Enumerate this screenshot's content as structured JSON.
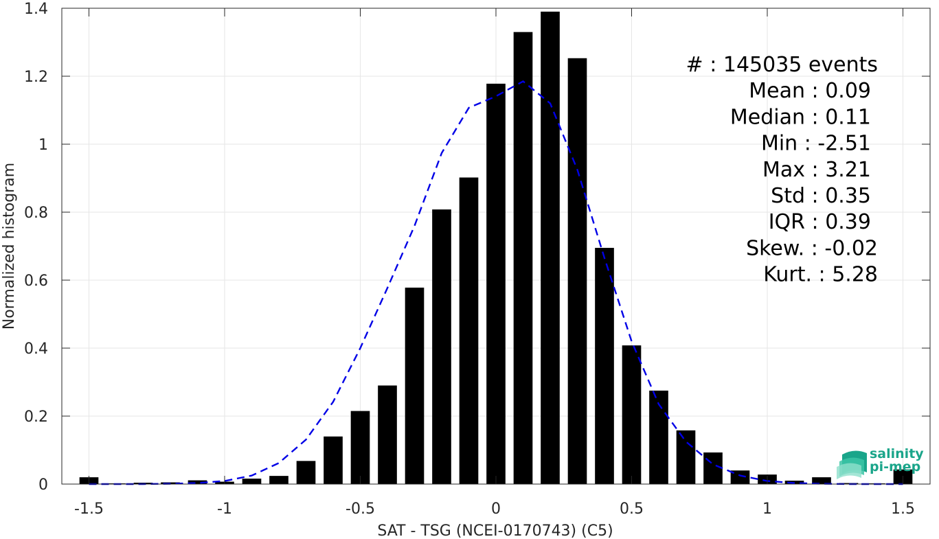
{
  "chart_data": {
    "type": "bar",
    "xlabel": "SAT - TSG (NCEI-0170743) (C5)",
    "ylabel": "Normalized histogram",
    "xlim": [
      -1.6,
      1.6
    ],
    "ylim": [
      0,
      1.4
    ],
    "xticks": [
      -1.5,
      -1,
      -0.5,
      0,
      0.5,
      1,
      1.5
    ],
    "xtick_labels": [
      "-1.5",
      "-1",
      "-0.5",
      "0",
      "0.5",
      "1",
      "1.5"
    ],
    "yticks": [
      0,
      0.2,
      0.4,
      0.6,
      0.8,
      1,
      1.2,
      1.4
    ],
    "ytick_labels": [
      "0",
      "0.2",
      "0.4",
      "0.6",
      "0.8",
      "1",
      "1.2",
      "1.4"
    ],
    "grid": true,
    "bar_width": 0.07,
    "bars": {
      "x": [
        -1.5,
        -1.4,
        -1.3,
        -1.2,
        -1.1,
        -1.0,
        -0.9,
        -0.8,
        -0.7,
        -0.6,
        -0.5,
        -0.4,
        -0.3,
        -0.2,
        -0.1,
        0.0,
        0.1,
        0.2,
        0.3,
        0.4,
        0.5,
        0.6,
        0.7,
        0.8,
        0.9,
        1.0,
        1.1,
        1.2,
        1.3,
        1.4,
        1.5
      ],
      "values": [
        0.02,
        0.002,
        0.004,
        0.005,
        0.011,
        0.007,
        0.016,
        0.024,
        0.068,
        0.14,
        0.215,
        0.29,
        0.578,
        0.808,
        0.902,
        1.178,
        1.33,
        1.39,
        1.253,
        0.695,
        0.408,
        0.275,
        0.158,
        0.093,
        0.04,
        0.028,
        0.01,
        0.02,
        0.003,
        0.002,
        0.043
      ],
      "color": "#000000"
    },
    "fit_curve": {
      "style": "dashed",
      "color": "#0000e6",
      "x": [
        -1.5,
        -1.4,
        -1.3,
        -1.2,
        -1.1,
        -1.0,
        -0.9,
        -0.8,
        -0.7,
        -0.6,
        -0.5,
        -0.4,
        -0.3,
        -0.2,
        -0.1,
        0.0,
        0.1,
        0.2,
        0.3,
        0.4,
        0.5,
        0.6,
        0.7,
        0.8,
        0.9,
        1.0,
        1.1,
        1.2,
        1.3,
        1.4,
        1.5
      ],
      "y": [
        0.0,
        0.0,
        0.0,
        0.001,
        0.003,
        0.009,
        0.025,
        0.062,
        0.131,
        0.242,
        0.4,
        0.577,
        0.76,
        0.974,
        1.107,
        1.141,
        1.185,
        1.12,
        0.925,
        0.665,
        0.42,
        0.235,
        0.125,
        0.058,
        0.025,
        0.009,
        0.003,
        0.001,
        0.0,
        0.0,
        0.0
      ]
    },
    "stats": [
      {
        "text": "#  : 145035 events"
      },
      {
        "text": "Mean : 0.09"
      },
      {
        "text": "Median : 0.11"
      },
      {
        "text": "Min : -2.51"
      },
      {
        "text": "Max : 3.21"
      },
      {
        "text": "Std : 0.35"
      },
      {
        "text": "IQR : 0.39"
      },
      {
        "text": "Skew. : -0.02"
      },
      {
        "text": "Kurt. : 5.28"
      }
    ]
  },
  "logo": {
    "line1": "salinity",
    "line2": "pi-mep"
  }
}
